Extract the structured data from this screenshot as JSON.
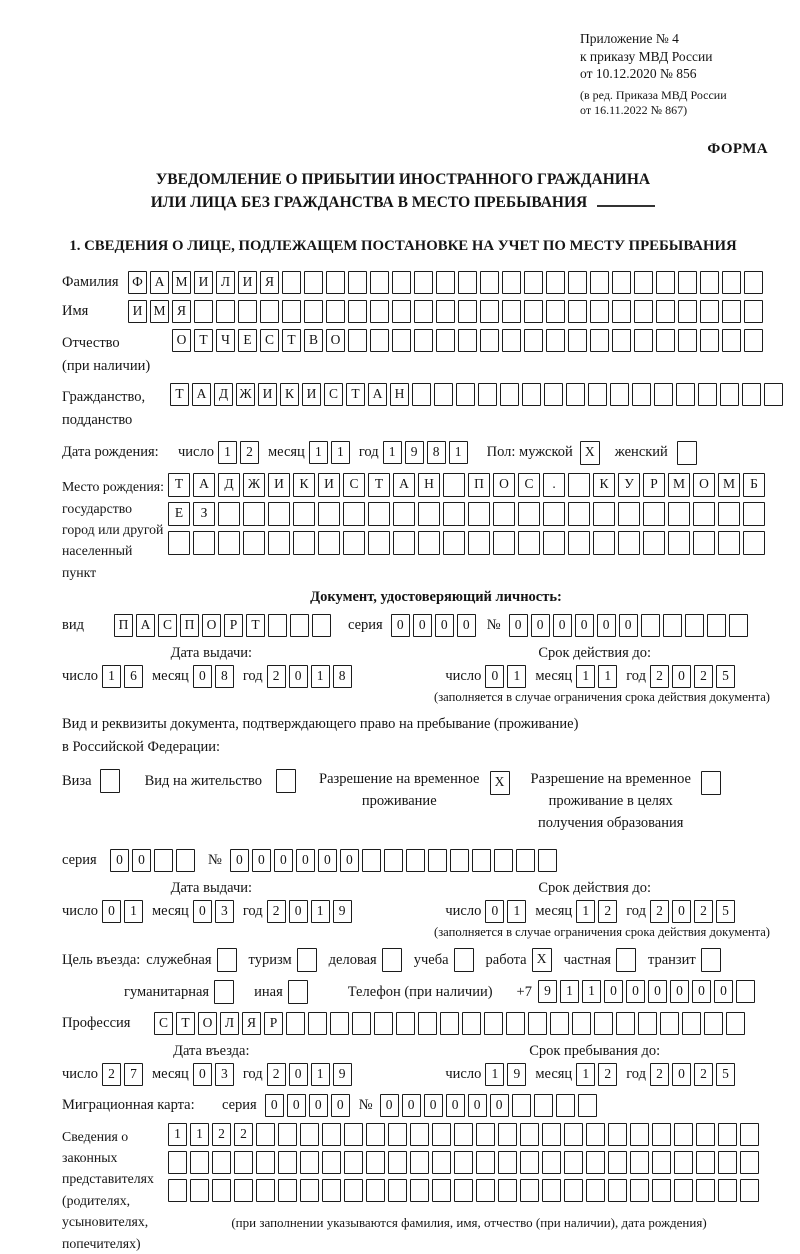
{
  "colors": {
    "ink": "#141414",
    "paper": "#ffffff",
    "cell_border": "#1c1c1c"
  },
  "header": {
    "annex1": "Приложение № 4",
    "annex2": "к приказу МВД России",
    "annex3": "от 10.12.2020 № 856",
    "rev1": "(в ред. Приказа МВД России",
    "rev2": "от 16.11.2022 № 867)",
    "form": "ФОРМА",
    "title1": "УВЕДОМЛЕНИЕ О ПРИБЫТИИ ИНОСТРАННОГО ГРАЖДАНИНА",
    "title2": "ИЛИ ЛИЦА БЕЗ ГРАЖДАНСТВА В МЕСТО ПРЕБЫВАНИЯ",
    "section1": "1. СВЕДЕНИЯ О ЛИЦЕ, ПОДЛЕЖАЩЕМ ПОСТАНОВКЕ НА УЧЕТ ПО МЕСТУ ПРЕБЫВАНИЯ"
  },
  "labels": {
    "surname": "Фамилия",
    "name": "Имя",
    "patronymic": "Отчество",
    "if_any": "(при наличии)",
    "citizenship1": "Гражданство,",
    "citizenship2": "подданство",
    "birth_date": "Дата рождения:",
    "day": "число",
    "month": "месяц",
    "year": "год",
    "sex_male": "Пол: мужской",
    "sex_female": "женский",
    "birthplace1": "Место рождения:",
    "birthplace2": "государство",
    "birthplace3": "город или другой",
    "birthplace4": "населенный пункт",
    "id_doc_heading": "Документ, удостоверяющий личность:",
    "doc_type": "вид",
    "series": "серия",
    "number": "№",
    "issue_date": "Дата выдачи:",
    "valid_until": "Срок действия до:",
    "restriction_note": "(заполняется в случае ограничения срока действия документа)",
    "permit_line1": "Вид и реквизиты документа, подтверждающего право на пребывание (проживание)",
    "permit_line2": "в Российской Федерации:",
    "visa": "Виза",
    "residence": "Вид на жительство",
    "temp1": "Разрешение на временное",
    "temp2": "проживание",
    "edu1": "Разрешение на временное",
    "edu2": "проживание в целях",
    "edu3": "получения образования",
    "phone": "Телефон (при наличии)",
    "phone_prefix": "+7",
    "profession": "Профессия",
    "entry_date": "Дата въезда:",
    "stay_until": "Срок пребывания до:",
    "migration_card": "Миграционная карта:",
    "rep1": "Сведения о",
    "rep2": "законных",
    "rep3": "представителях",
    "rep4": "(родителях,",
    "rep5": "усыновителях,",
    "rep6": "попечителях)",
    "rep_note": "(при заполнении указываются фамилия, имя, отчество (при наличии), дата рождения)"
  },
  "purpose": {
    "label": "Цель въезда:",
    "options": [
      {
        "label": "служебная",
        "box": {
          "len": 1,
          "value": ""
        }
      },
      {
        "label": "туризм",
        "box": {
          "len": 1,
          "value": ""
        }
      },
      {
        "label": "деловая",
        "box": {
          "len": 1,
          "value": ""
        }
      },
      {
        "label": "учеба",
        "box": {
          "len": 1,
          "value": ""
        }
      },
      {
        "label": "работа",
        "box": {
          "len": 1,
          "value": "X"
        }
      },
      {
        "label": "частная",
        "box": {
          "len": 1,
          "value": ""
        }
      },
      {
        "label": "транзит",
        "box": {
          "len": 1,
          "value": ""
        }
      }
    ],
    "options2": [
      {
        "label": "гуманитарная",
        "box": {
          "len": 1,
          "value": ""
        }
      },
      {
        "label": "иная",
        "box": {
          "len": 1,
          "value": ""
        }
      }
    ]
  },
  "fields": {
    "surname": {
      "len": 29,
      "value": "ФАМИЛИЯ"
    },
    "given_name": {
      "len": 29,
      "value": "ИМЯ"
    },
    "patronymic": {
      "len": 27,
      "value": "ОТЧЕСТВО"
    },
    "citizenship": {
      "len": 28,
      "value": "ТАДЖИКИСТАН"
    },
    "birth": {
      "day": {
        "len": 2,
        "value": "12"
      },
      "month": {
        "len": 2,
        "value": "11"
      },
      "year": {
        "len": 4,
        "value": "1981"
      }
    },
    "sex_male_box": {
      "len": 1,
      "value": "X"
    },
    "sex_female_box": {
      "len": 1,
      "value": ""
    },
    "birthplace_row1": {
      "len": 24,
      "value": "ТАДЖИКИСТАН ПОС. КУРМОМБ"
    },
    "birthplace_row2": {
      "len": 24,
      "value": "ЕЗ"
    },
    "birthplace_row3": {
      "len": 24,
      "value": ""
    },
    "id_doc": {
      "type": {
        "len": 10,
        "value": "ПАСПОРТ"
      },
      "series": {
        "len": 4,
        "value": "0000"
      },
      "number": {
        "len": 11,
        "value": "000000"
      },
      "issue": {
        "day": {
          "len": 2,
          "value": "16"
        },
        "month": {
          "len": 2,
          "value": "08"
        },
        "year": {
          "len": 4,
          "value": "2018"
        }
      },
      "valid": {
        "day": {
          "len": 2,
          "value": "01"
        },
        "month": {
          "len": 2,
          "value": "11"
        },
        "year": {
          "len": 4,
          "value": "2025"
        }
      }
    },
    "permit": {
      "visa_box": {
        "len": 1,
        "value": ""
      },
      "residence_box": {
        "len": 1,
        "value": ""
      },
      "temp_box": {
        "len": 1,
        "value": "X"
      },
      "edu_box": {
        "len": 1,
        "value": ""
      },
      "series": {
        "len": 4,
        "value": "00"
      },
      "number": {
        "len": 15,
        "value": "000000"
      },
      "issue": {
        "day": {
          "len": 2,
          "value": "01"
        },
        "month": {
          "len": 2,
          "value": "03"
        },
        "year": {
          "len": 4,
          "value": "2019"
        }
      },
      "valid": {
        "day": {
          "len": 2,
          "value": "01"
        },
        "month": {
          "len": 2,
          "value": "12"
        },
        "year": {
          "len": 4,
          "value": "2025"
        }
      }
    },
    "phone": {
      "len": 10,
      "value": "911000000"
    },
    "profession": {
      "len": 27,
      "value": "СТОЛЯР"
    },
    "entry": {
      "day": {
        "len": 2,
        "value": "27"
      },
      "month": {
        "len": 2,
        "value": "03"
      },
      "year": {
        "len": 4,
        "value": "2019"
      }
    },
    "stay": {
      "day": {
        "len": 2,
        "value": "19"
      },
      "month": {
        "len": 2,
        "value": "12"
      },
      "year": {
        "len": 4,
        "value": "2025"
      }
    },
    "migration": {
      "series": {
        "len": 4,
        "value": "0000"
      },
      "number": {
        "len": 10,
        "value": "000000"
      }
    },
    "representatives": {
      "row1": {
        "len": 27,
        "value": "1122"
      },
      "row2": {
        "len": 27,
        "value": ""
      },
      "row3": {
        "len": 27,
        "value": ""
      }
    }
  }
}
